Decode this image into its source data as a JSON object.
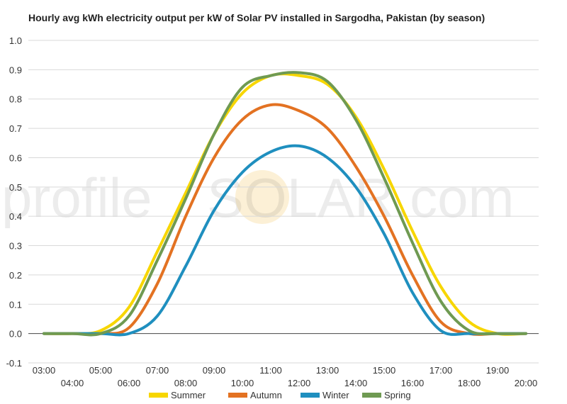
{
  "chart_data": {
    "type": "line",
    "title": "Hourly avg kWh electricity output per kW of Solar PV installed in Sargodha, Pakistan (by season)",
    "xlabel": "",
    "ylabel": "",
    "x": [
      "03:00",
      "04:00",
      "05:00",
      "06:00",
      "07:00",
      "08:00",
      "09:00",
      "10:00",
      "11:00",
      "12:00",
      "13:00",
      "14:00",
      "15:00",
      "16:00",
      "17:00",
      "18:00",
      "19:00",
      "20:00"
    ],
    "x_ticks_upper": [
      "03:00",
      "05:00",
      "07:00",
      "09:00",
      "11:00",
      "13:00",
      "15:00",
      "17:00",
      "19:00"
    ],
    "x_ticks_lower": [
      "04:00",
      "06:00",
      "08:00",
      "10:00",
      "12:00",
      "14:00",
      "16:00",
      "18:00",
      "20:00"
    ],
    "ylim": [
      -0.1,
      1.0
    ],
    "y_ticks": [
      "-0.1",
      "0.0",
      "0.1",
      "0.2",
      "0.3",
      "0.4",
      "0.5",
      "0.6",
      "0.7",
      "0.8",
      "0.9",
      "1.0"
    ],
    "grid": true,
    "legend_position": "bottom",
    "series": [
      {
        "name": "Summer",
        "color": "#f7d600",
        "values": [
          0.0,
          0.0,
          0.01,
          0.09,
          0.28,
          0.48,
          0.68,
          0.82,
          0.88,
          0.88,
          0.85,
          0.74,
          0.56,
          0.35,
          0.16,
          0.04,
          0.0,
          0.0
        ]
      },
      {
        "name": "Autumn",
        "color": "#e37222",
        "values": [
          0.0,
          0.0,
          0.0,
          0.02,
          0.17,
          0.4,
          0.6,
          0.73,
          0.78,
          0.76,
          0.7,
          0.57,
          0.4,
          0.2,
          0.04,
          0.0,
          0.0,
          0.0
        ]
      },
      {
        "name": "Winter",
        "color": "#1f8fbf",
        "values": [
          0.0,
          0.0,
          0.0,
          0.0,
          0.06,
          0.23,
          0.42,
          0.55,
          0.62,
          0.64,
          0.6,
          0.5,
          0.34,
          0.14,
          0.01,
          0.0,
          0.0,
          0.0
        ]
      },
      {
        "name": "Spring",
        "color": "#6f9a52",
        "values": [
          0.0,
          0.0,
          0.0,
          0.06,
          0.25,
          0.46,
          0.68,
          0.84,
          0.88,
          0.89,
          0.86,
          0.73,
          0.53,
          0.31,
          0.11,
          0.01,
          0.0,
          0.0
        ]
      }
    ]
  },
  "watermark": {
    "text_left": "profile",
    "text_right": "SOLAR.com",
    "sun_color": "#f5d58a"
  }
}
